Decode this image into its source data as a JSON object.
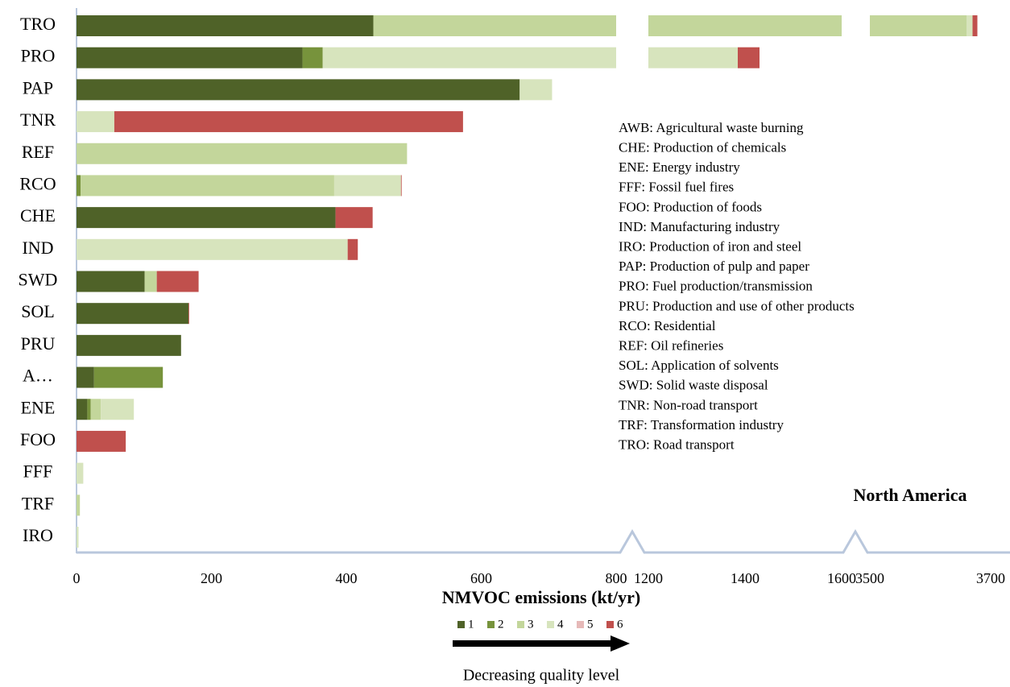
{
  "chart_data": {
    "type": "stacked-barh-broken",
    "region": "North America",
    "x_label": "NMVOC emissions (kt/yr)",
    "quality_label": "Decreasing quality level",
    "categories": [
      "TRO",
      "PRO",
      "PAP",
      "TNR",
      "REF",
      "RCO",
      "CHE",
      "IND",
      "SWD",
      "SOL",
      "PRU",
      "A…",
      "ENE",
      "FOO",
      "FFF",
      "TRF",
      "IRO"
    ],
    "x_segments": [
      {
        "xlim": [
          0,
          800
        ],
        "xticks": [
          0,
          200,
          400,
          600,
          800
        ]
      },
      {
        "xlim": [
          1200,
          1600
        ],
        "xticks": [
          1200,
          1400,
          1600
        ]
      },
      {
        "xlim": [
          3500,
          3700
        ],
        "xticks": [
          3500,
          3700
        ]
      }
    ],
    "series": [
      {
        "name": "1",
        "color": "#4f6228",
        "values": [
          440,
          335,
          657,
          0,
          0,
          0,
          384,
          0,
          101,
          166,
          155,
          26,
          16,
          0,
          0,
          0,
          0
        ]
      },
      {
        "name": "2",
        "color": "#77933c",
        "values": [
          0,
          30,
          0,
          0,
          0,
          6,
          0,
          0,
          0,
          0,
          0,
          102,
          5,
          0,
          0,
          0,
          0
        ]
      },
      {
        "name": "3",
        "color": "#c3d69b",
        "values": [
          3220,
          0,
          0,
          0,
          490,
          376,
          0,
          0,
          18,
          0,
          0,
          0,
          15,
          0,
          0,
          5,
          0
        ]
      },
      {
        "name": "4",
        "color": "#d7e4bd",
        "values": [
          10,
          1020,
          48,
          56,
          0,
          99,
          0,
          402,
          0,
          0,
          0,
          0,
          49,
          0,
          10,
          0,
          3
        ]
      },
      {
        "name": "5",
        "color": "#e6b9b8",
        "values": [
          0,
          0,
          0,
          0,
          0,
          0,
          0,
          0,
          0,
          0,
          0,
          0,
          0,
          0,
          0,
          0,
          0
        ]
      },
      {
        "name": "6",
        "color": "#c0504d",
        "values": [
          8,
          45,
          0,
          517,
          0,
          1,
          55,
          15,
          62,
          1,
          0,
          0,
          0,
          73,
          0,
          0,
          0
        ]
      }
    ],
    "notes": [
      "AWB: Agricultural waste burning",
      "CHE: Production of chemicals",
      "ENE: Energy industry",
      "FFF: Fossil fuel fires",
      "FOO: Production of foods",
      "IND: Manufacturing industry",
      "IRO: Production of iron and steel",
      "PAP: Production of pulp and paper",
      "PRO: Fuel production/transmission",
      "PRU: Production and use of other products",
      "RCO: Residential",
      "REF: Oil refineries",
      "SOL: Application of solvents",
      "SWD: Solid waste disposal",
      "TNR: Non-road transport",
      "TRF: Transformation industry",
      "TRO: Road transport"
    ]
  }
}
